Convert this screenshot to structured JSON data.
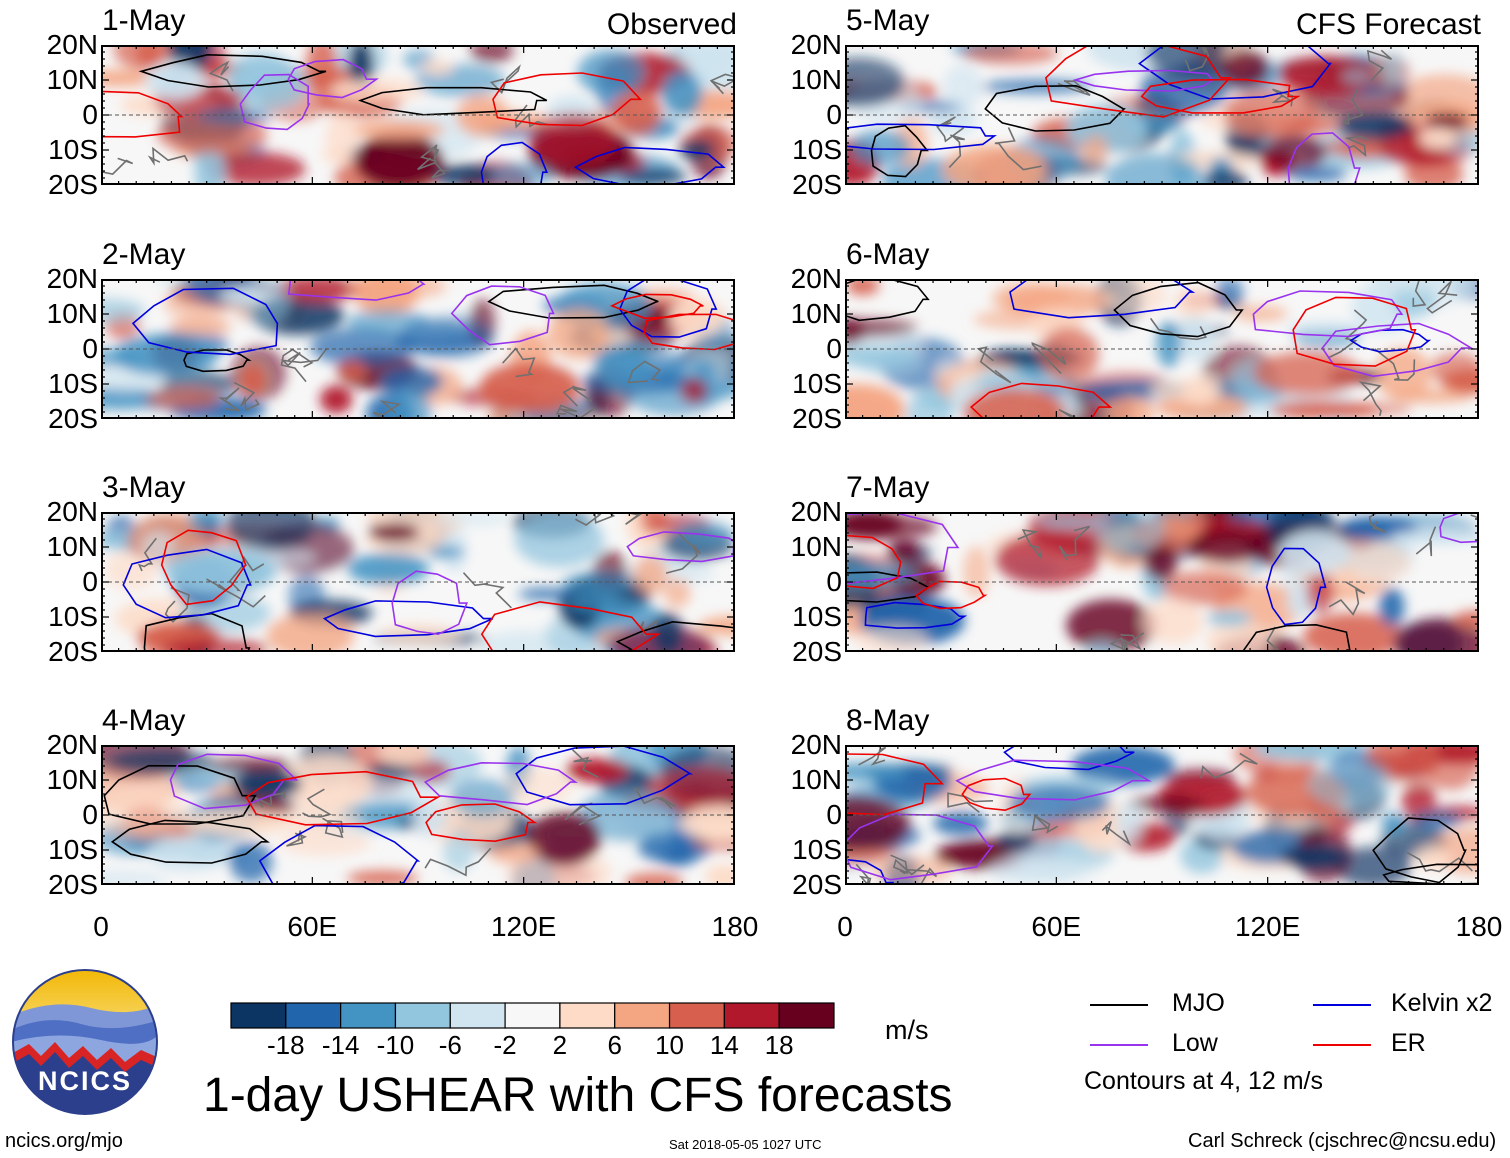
{
  "chart_data": {
    "type": "heatmap",
    "title": "1-day USHEAR with CFS forecasts",
    "variable": "USHEAR",
    "units": "m/s",
    "observed_label": "Observed",
    "forecast_label": "CFS Forecast",
    "panels": [
      {
        "date": "1-May",
        "kind": "observed"
      },
      {
        "date": "2-May",
        "kind": "observed"
      },
      {
        "date": "3-May",
        "kind": "observed"
      },
      {
        "date": "4-May",
        "kind": "observed"
      },
      {
        "date": "5-May",
        "kind": "forecast"
      },
      {
        "date": "6-May",
        "kind": "forecast"
      },
      {
        "date": "7-May",
        "kind": "forecast"
      },
      {
        "date": "8-May",
        "kind": "forecast"
      }
    ],
    "y_ticks": [
      "20N",
      "10N",
      "0",
      "10S",
      "20S"
    ],
    "y_range": [
      -20,
      20
    ],
    "x_ticks": [
      "0",
      "60E",
      "120E",
      "180"
    ],
    "x_range": [
      0,
      180
    ],
    "colorbar": {
      "levels": [
        -22,
        -18,
        -14,
        -10,
        -6,
        -2,
        2,
        6,
        10,
        14,
        18,
        22
      ],
      "tick_labels": [
        "-18",
        "-14",
        "-10",
        "-6",
        "-2",
        "2",
        "6",
        "10",
        "14",
        "18"
      ],
      "colors": [
        "#0d3563",
        "#2166ac",
        "#4393c3",
        "#92c5de",
        "#d1e5f0",
        "#f7f7f7",
        "#fddbc7",
        "#f4a582",
        "#d6604d",
        "#b2182b",
        "#67001f"
      ]
    },
    "legend": [
      {
        "label": "MJO",
        "color": "#000000"
      },
      {
        "label": "Kelvin x2",
        "color": "#0000dd"
      },
      {
        "label": "Low",
        "color": "#9933ee"
      },
      {
        "label": "ER",
        "color": "#ee0000"
      }
    ],
    "contour_note": "Contours at 4, 12 m/s"
  },
  "footer": {
    "logo_text": "NCICS",
    "website": "ncics.org/mjo",
    "timestamp": "Sat 2018-05-05 1027 UTC",
    "author": "Carl Schreck (cjschrec@ncsu.edu)"
  }
}
